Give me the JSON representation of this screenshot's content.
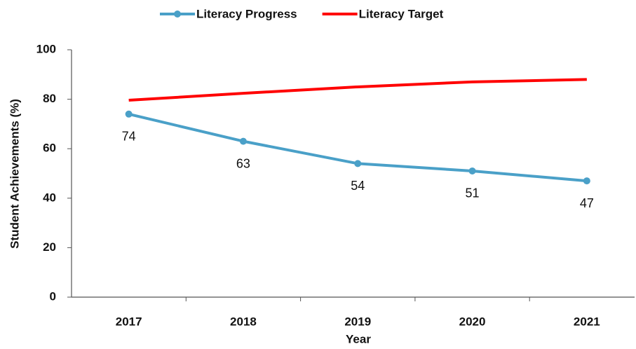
{
  "chart_data": {
    "type": "line",
    "categories": [
      "2017",
      "2018",
      "2019",
      "2020",
      "2021"
    ],
    "series": [
      {
        "name": "Literacy Progress",
        "color": "#4aa0c8",
        "values": [
          74,
          63,
          54,
          51,
          47
        ],
        "markers": true,
        "data_labels": true
      },
      {
        "name": "Literacy Target",
        "color": "#ff0000",
        "values": [
          79.6,
          82.4,
          85,
          87,
          88
        ],
        "markers": false,
        "data_labels": false
      }
    ],
    "xlabel": "Year",
    "ylabel": "Student Achievements (%)",
    "ylim": [
      0,
      100
    ],
    "yticks": [
      0,
      20,
      40,
      60,
      80,
      100
    ],
    "grid": false,
    "legend": "top"
  }
}
